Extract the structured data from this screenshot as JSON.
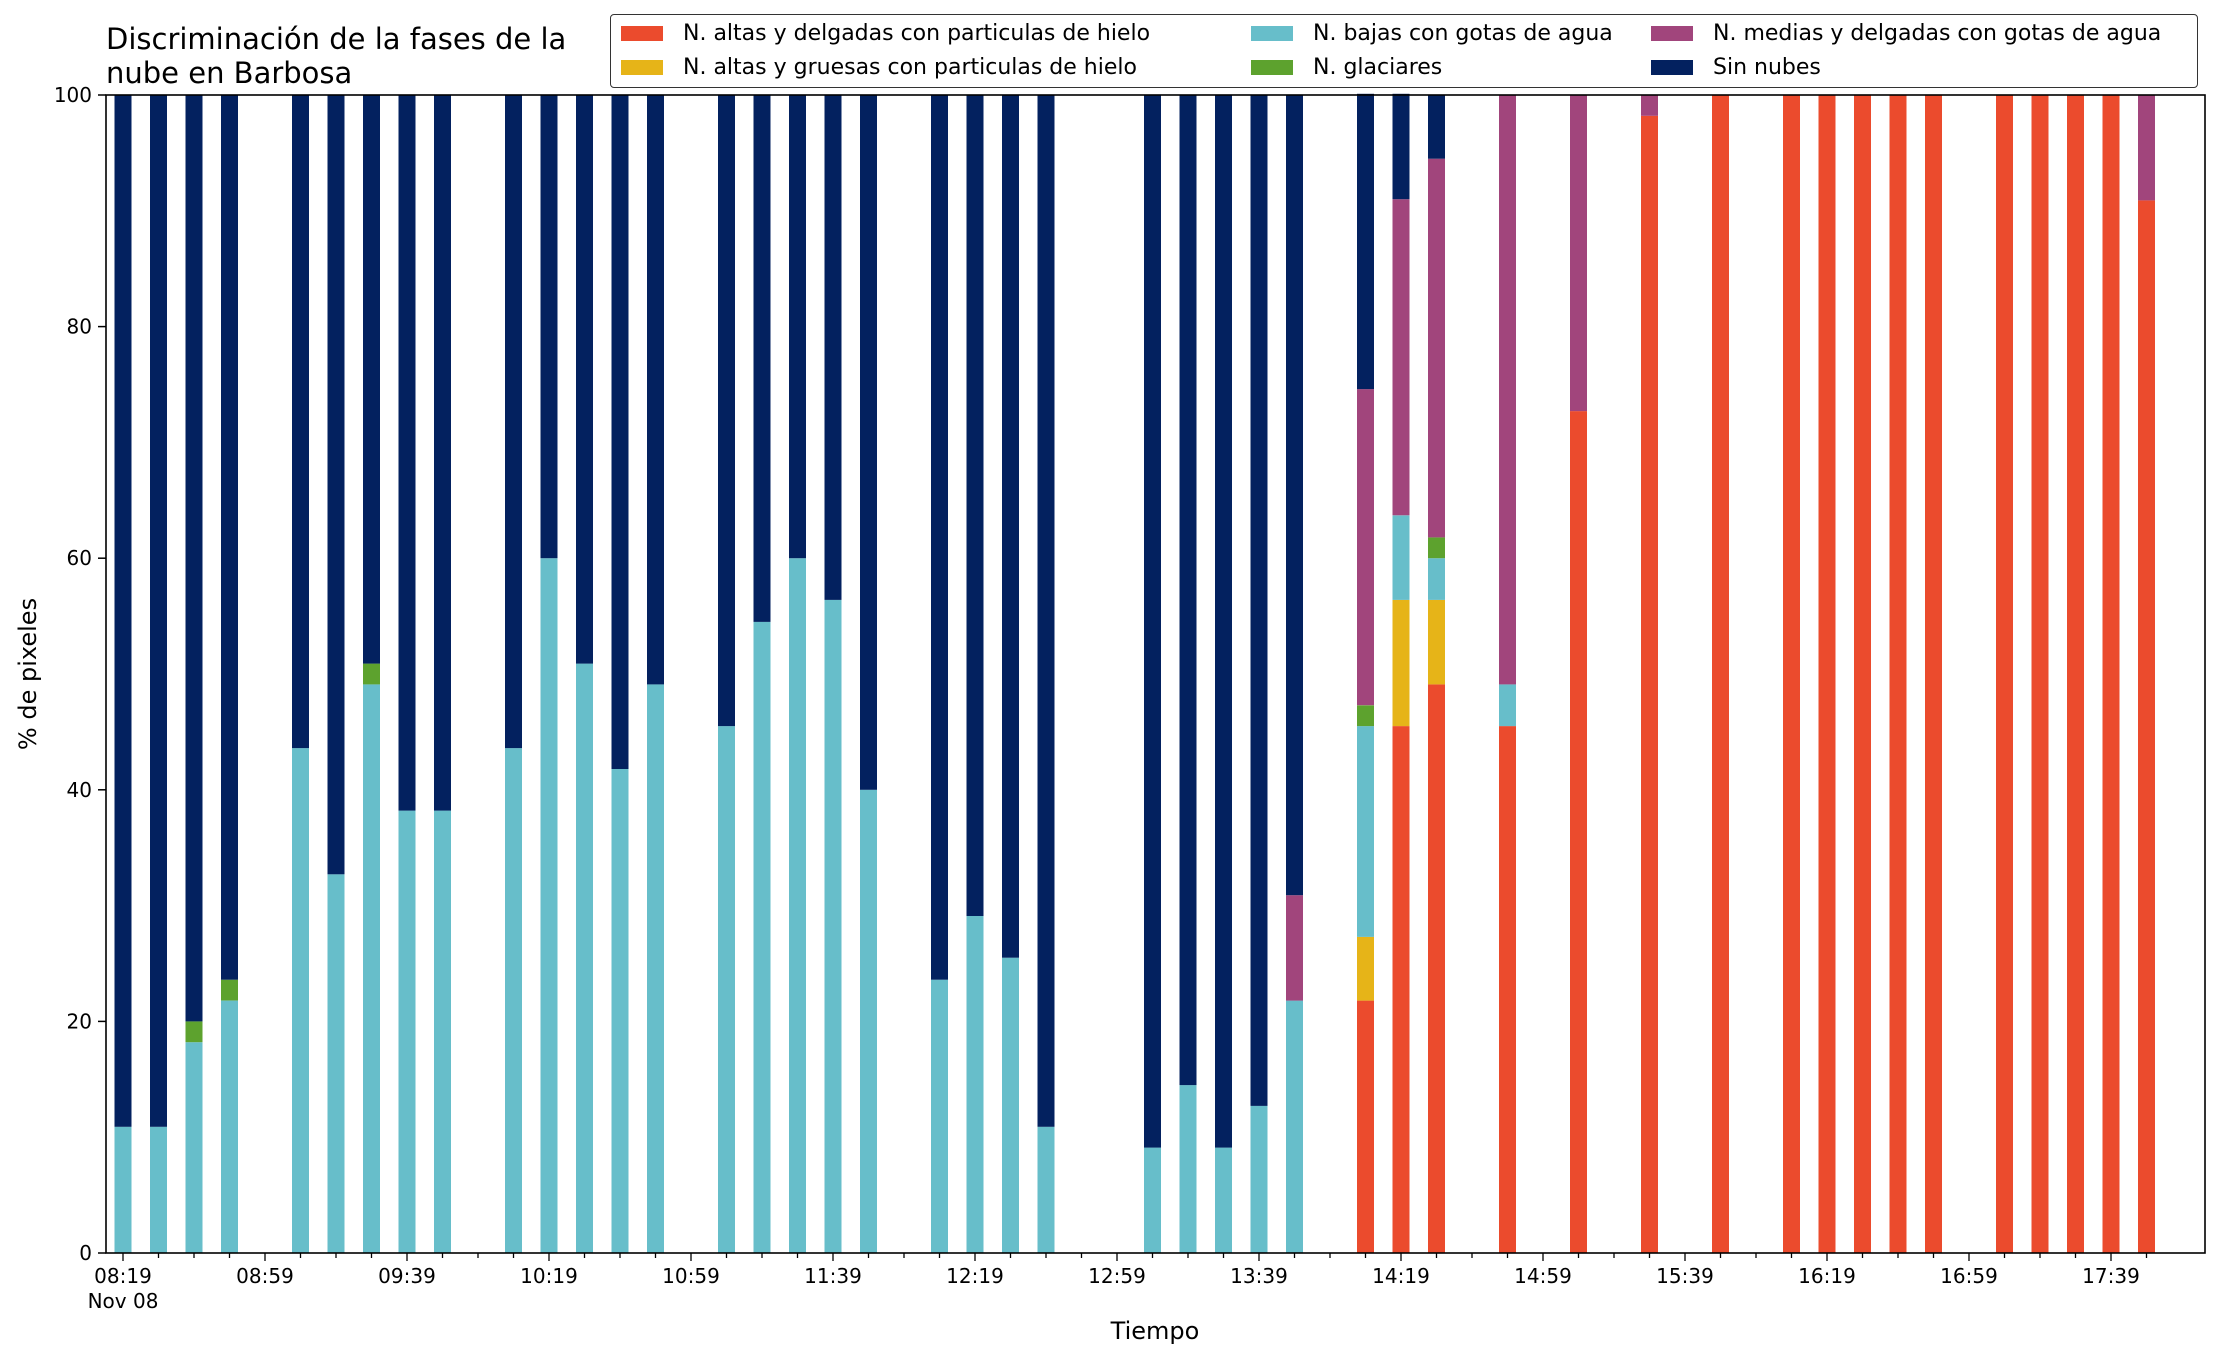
{
  "chart_data": {
    "type": "bar",
    "stacked": true,
    "title": "Discriminación de la fases de la\nnube en Barbosa",
    "xlabel": "Tiempo",
    "ylabel": "% de pixeles",
    "ylim": [
      0,
      100
    ],
    "yticks": [
      "0",
      "20",
      "40",
      "60",
      "80",
      "100"
    ],
    "xtick_labels": [
      {
        "label": "08:19",
        "minutes": 0,
        "sub": "Nov 08"
      },
      {
        "label": "08:59",
        "minutes": 40
      },
      {
        "label": "09:39",
        "minutes": 80
      },
      {
        "label": "10:19",
        "minutes": 120
      },
      {
        "label": "10:59",
        "minutes": 160
      },
      {
        "label": "11:39",
        "minutes": 200
      },
      {
        "label": "12:19",
        "minutes": 240
      },
      {
        "label": "12:59",
        "minutes": 280
      },
      {
        "label": "13:39",
        "minutes": 320
      },
      {
        "label": "14:19",
        "minutes": 360
      },
      {
        "label": "14:59",
        "minutes": 400
      },
      {
        "label": "15:39",
        "minutes": 440
      },
      {
        "label": "16:19",
        "minutes": 480
      },
      {
        "label": "16:59",
        "minutes": 520
      },
      {
        "label": "17:39",
        "minutes": 560
      }
    ],
    "legend_position": "top-right",
    "legend_columns": 3,
    "series": [
      {
        "name": "N. altas y delgadas con particulas de hielo",
        "color": "#EB4B2D",
        "values": [
          0,
          0,
          0,
          0,
          0,
          0,
          0,
          0,
          0,
          0,
          0,
          0,
          0,
          0,
          0,
          0,
          0,
          0,
          0,
          0,
          0,
          0,
          0,
          0,
          0,
          0,
          0,
          0,
          0,
          0,
          0,
          21.8,
          45.5,
          49.1,
          0,
          45.5,
          72.7,
          98.2,
          100,
          100,
          100,
          100,
          100,
          100,
          100,
          100,
          100,
          100,
          90.9
        ]
      },
      {
        "name": "N. altas y gruesas con particulas de hielo",
        "color": "#E6B418",
        "values": [
          0,
          0,
          0,
          0,
          0,
          0,
          0,
          0,
          0,
          0,
          0,
          0,
          0,
          0,
          0,
          0,
          0,
          0,
          0,
          0,
          0,
          0,
          0,
          0,
          0,
          0,
          0,
          0,
          0,
          0,
          0,
          5.5,
          10.9,
          7.3,
          0,
          0,
          0,
          0,
          0,
          0,
          0,
          0,
          0,
          0,
          0,
          0,
          0,
          0,
          0
        ]
      },
      {
        "name": "N. bajas con gotas de agua",
        "color": "#67BECA",
        "values": [
          10.9,
          10.9,
          18.2,
          21.8,
          43.6,
          32.7,
          49.1,
          38.2,
          38.2,
          43.6,
          60,
          50.9,
          41.8,
          49.1,
          45.5,
          54.5,
          60,
          56.4,
          40,
          23.6,
          29.1,
          25.5,
          10.9,
          9.1,
          14.5,
          9.1,
          12.7,
          21.8,
          0,
          0,
          0,
          18.2,
          7.3,
          3.6,
          0,
          3.6,
          0,
          0,
          0,
          0,
          0,
          0,
          0,
          0,
          0,
          0,
          0,
          0,
          0
        ]
      },
      {
        "name": "N. glaciares",
        "color": "#5DA22E",
        "values": [
          0,
          0,
          1.8,
          1.8,
          0,
          0,
          1.8,
          0,
          0,
          0,
          0,
          0,
          0,
          0,
          0,
          0,
          0,
          0,
          0,
          0,
          0,
          0,
          0,
          0,
          0,
          0,
          0,
          0,
          0,
          0,
          0,
          1.8,
          0,
          1.8,
          0,
          0,
          0,
          0,
          0,
          0,
          0,
          0,
          0,
          0,
          0,
          0,
          0,
          0,
          0
        ]
      },
      {
        "name": "N. medias y delgadas con gotas de agua",
        "color": "#A1457C",
        "values": [
          0,
          0,
          0,
          0,
          0,
          0,
          0,
          0,
          0,
          0,
          0,
          0,
          0,
          0,
          0,
          0,
          0,
          0,
          0,
          0,
          0,
          0,
          0,
          0,
          0,
          0,
          0,
          9.1,
          0,
          0,
          0,
          27.3,
          27.3,
          32.7,
          0,
          50.9,
          27.3,
          1.8,
          0,
          0,
          0,
          0,
          0,
          0,
          0,
          0,
          0,
          0,
          9.1
        ]
      },
      {
        "name": "Sin nubes",
        "color": "#03215F",
        "values": [
          89.1,
          89.1,
          80,
          76.4,
          56.4,
          67.3,
          49.1,
          61.8,
          61.8,
          56.4,
          40,
          49.1,
          58.2,
          50.9,
          54.5,
          45.5,
          40,
          43.6,
          60,
          76.4,
          70.9,
          74.5,
          89.1,
          90.9,
          85.5,
          90.9,
          87.3,
          69.1,
          0,
          0,
          0,
          25.5,
          9.1,
          5.5,
          0,
          0,
          0,
          0,
          0,
          0,
          0,
          0,
          0,
          0,
          0,
          0,
          0,
          0,
          0
        ]
      }
    ],
    "x_minutes": [
      0,
      10,
      20,
      30,
      50,
      60,
      70,
      80,
      90,
      110,
      120,
      130,
      140,
      150,
      170,
      180,
      190,
      200,
      210,
      230,
      240,
      250,
      260,
      290,
      300,
      310,
      320,
      330,
      340,
      345,
      350,
      350,
      360,
      370,
      355,
      390,
      410,
      430,
      450,
      470,
      480,
      490,
      500,
      510,
      530,
      540,
      550,
      560,
      570
    ]
  }
}
